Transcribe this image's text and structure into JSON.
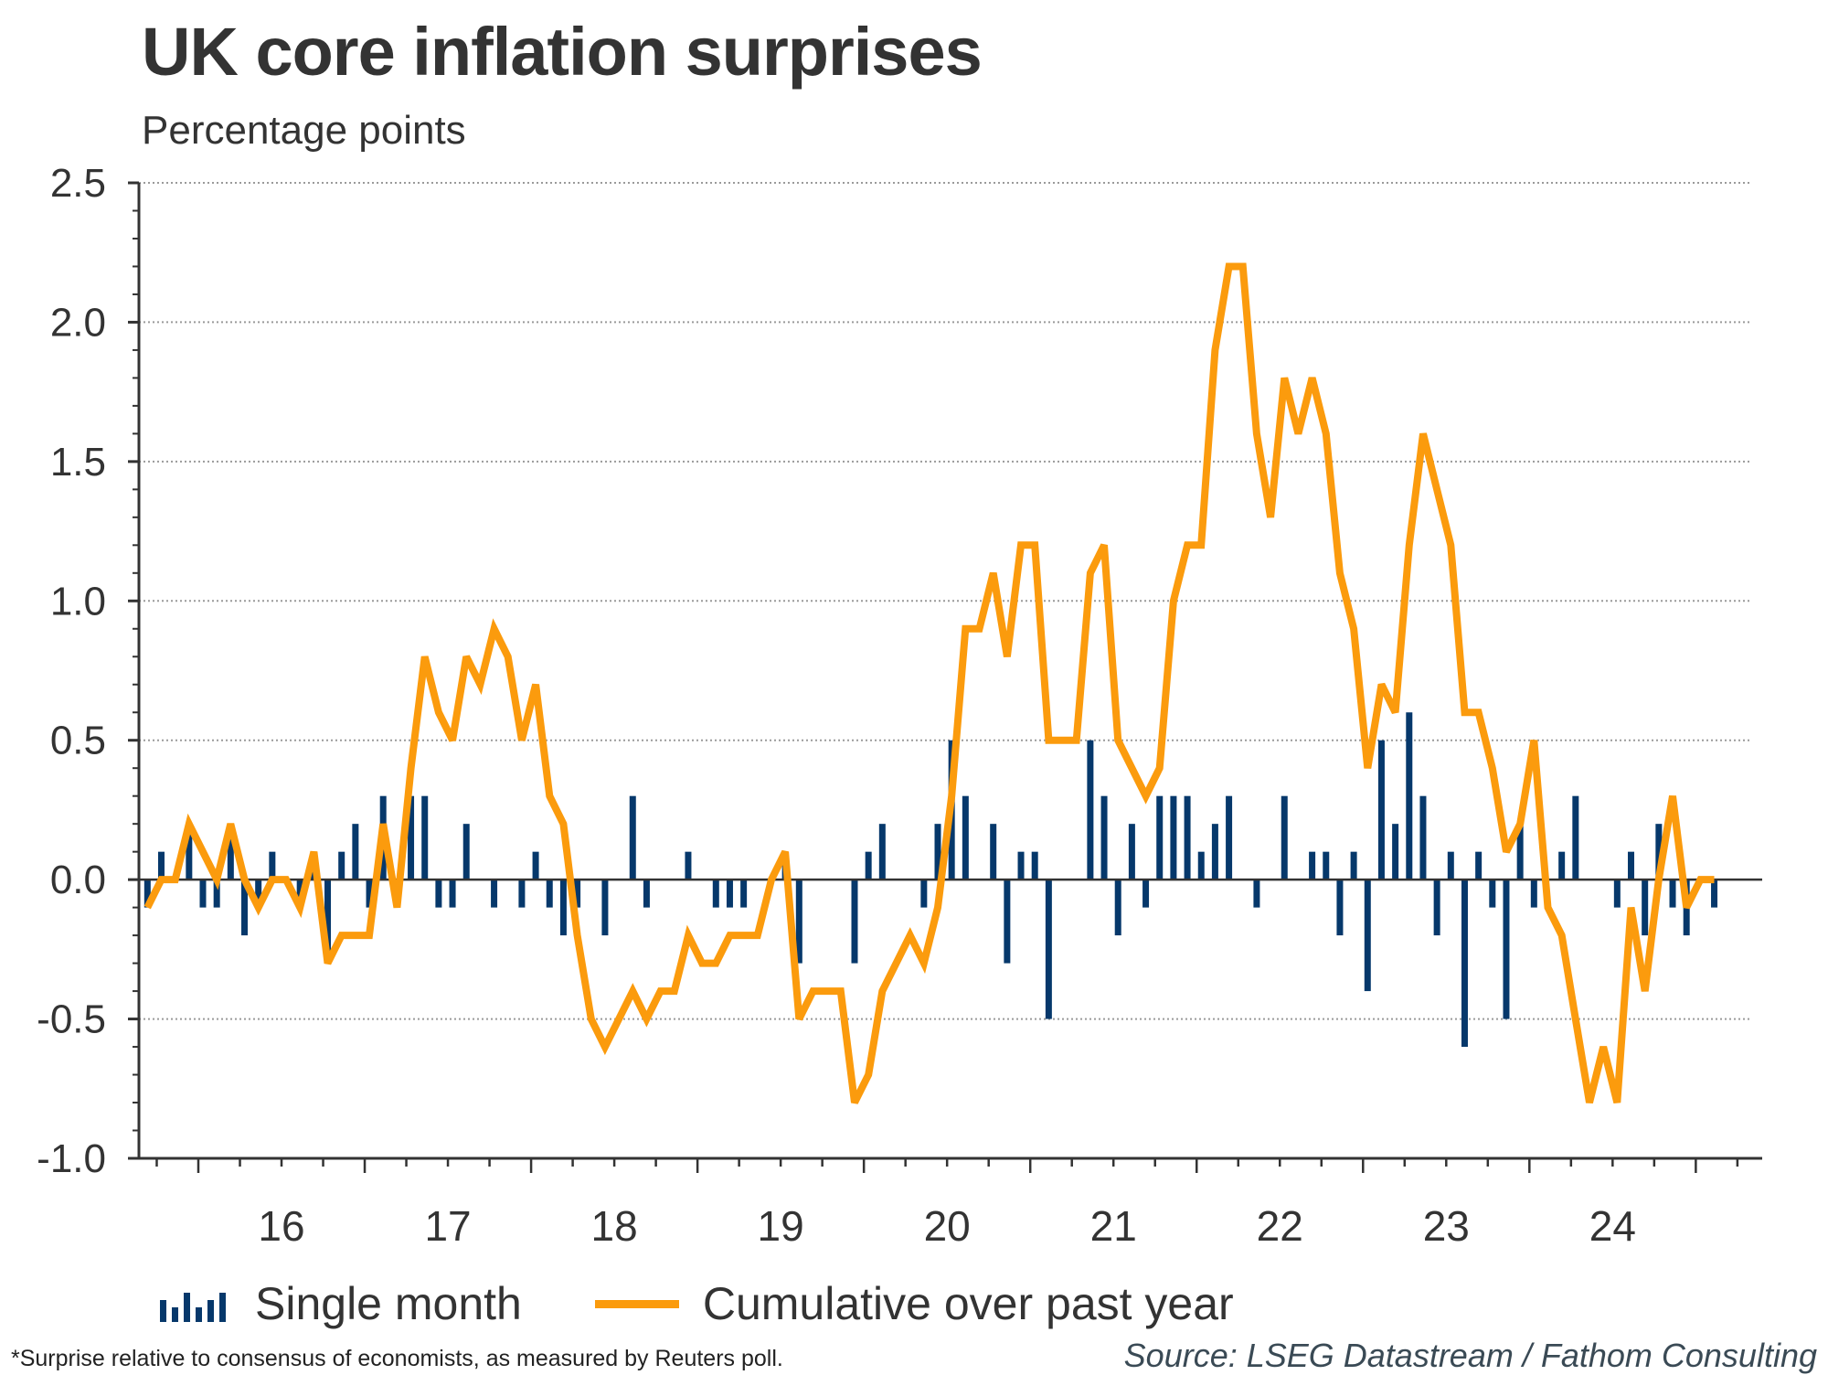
{
  "header": {
    "title": "UK core inflation surprises",
    "subtitle": "Percentage points"
  },
  "legend": {
    "bars_label": "Single month",
    "line_label": "Cumulative over past year"
  },
  "footer": {
    "footnote": "*Surprise relative to consensus of economists, as measured by Reuters poll.",
    "source": "Source: LSEG Datastream / Fathom Consulting"
  },
  "colors": {
    "bars": "#06386b",
    "line": "#fb9b0d",
    "axis": "#333333",
    "grid": "#9a9a9a",
    "text": "#333333"
  },
  "chart_data": {
    "type": "bar+line",
    "title": "UK core inflation surprises",
    "subtitle": "Percentage points",
    "xlabel": "",
    "ylabel": "Percentage points",
    "ylim": [
      -1.0,
      2.5
    ],
    "yticks": [
      -1.0,
      -0.5,
      0.0,
      0.5,
      1.0,
      1.5,
      2.0,
      2.5
    ],
    "ytick_labels": [
      "-1.0",
      "-0.5",
      "0.0",
      "0.5",
      "1.0",
      "1.5",
      "2.0",
      "2.5"
    ],
    "y_minor_step": 0.1,
    "xlim": [
      "2015-08",
      "2025-05"
    ],
    "xtick_labels": [
      "16",
      "17",
      "18",
      "19",
      "20",
      "21",
      "22",
      "23",
      "24"
    ],
    "x_major_ticks": "year start",
    "x_minor_ticks": "quarter start",
    "grid": "horizontal dotted at major y ticks",
    "legend_position": "bottom",
    "x": [
      "2015-09",
      "2015-10",
      "2015-11",
      "2015-12",
      "2016-01",
      "2016-02",
      "2016-03",
      "2016-04",
      "2016-05",
      "2016-06",
      "2016-07",
      "2016-08",
      "2016-09",
      "2016-10",
      "2016-11",
      "2016-12",
      "2017-01",
      "2017-02",
      "2017-03",
      "2017-04",
      "2017-05",
      "2017-06",
      "2017-07",
      "2017-08",
      "2017-09",
      "2017-10",
      "2017-11",
      "2017-12",
      "2018-01",
      "2018-02",
      "2018-03",
      "2018-04",
      "2018-05",
      "2018-06",
      "2018-07",
      "2018-08",
      "2018-09",
      "2018-10",
      "2018-11",
      "2018-12",
      "2019-01",
      "2019-02",
      "2019-03",
      "2019-04",
      "2019-05",
      "2019-06",
      "2019-07",
      "2019-08",
      "2019-09",
      "2019-10",
      "2019-11",
      "2019-12",
      "2020-01",
      "2020-02",
      "2020-03",
      "2020-04",
      "2020-05",
      "2020-06",
      "2020-07",
      "2020-08",
      "2020-09",
      "2020-10",
      "2020-11",
      "2020-12",
      "2021-01",
      "2021-02",
      "2021-03",
      "2021-04",
      "2021-05",
      "2021-06",
      "2021-07",
      "2021-08",
      "2021-09",
      "2021-10",
      "2021-11",
      "2021-12",
      "2022-01",
      "2022-02",
      "2022-03",
      "2022-04",
      "2022-05",
      "2022-06",
      "2022-07",
      "2022-08",
      "2022-09",
      "2022-10",
      "2022-11",
      "2022-12",
      "2023-01",
      "2023-02",
      "2023-03",
      "2023-04",
      "2023-05",
      "2023-06",
      "2023-07",
      "2023-08",
      "2023-09",
      "2023-10",
      "2023-11",
      "2023-12",
      "2024-01",
      "2024-02",
      "2024-03",
      "2024-04",
      "2024-05",
      "2024-06",
      "2024-07",
      "2024-08",
      "2024-09",
      "2024-10",
      "2024-11",
      "2024-12",
      "2025-01",
      "2025-02"
    ],
    "series": [
      {
        "name": "Single month",
        "type": "bar",
        "values": [
          -0.1,
          0.1,
          0.0,
          0.2,
          -0.1,
          -0.1,
          0.2,
          -0.2,
          -0.1,
          0.1,
          0.0,
          -0.1,
          0.1,
          -0.3,
          0.1,
          0.2,
          -0.1,
          0.3,
          0.0,
          0.3,
          0.3,
          -0.1,
          -0.1,
          0.2,
          0.0,
          -0.1,
          0.0,
          -0.1,
          0.1,
          -0.1,
          -0.2,
          -0.1,
          0.0,
          -0.2,
          0.0,
          0.3,
          -0.1,
          0.0,
          0.0,
          0.1,
          0.0,
          -0.1,
          -0.1,
          -0.1,
          0.0,
          0.0,
          0.1,
          -0.3,
          0.0,
          0.0,
          0.0,
          -0.3,
          0.1,
          0.2,
          0.0,
          0.0,
          -0.1,
          0.2,
          0.5,
          0.3,
          0.0,
          0.2,
          -0.3,
          0.1,
          0.1,
          -0.5,
          0.0,
          0.0,
          0.5,
          0.3,
          -0.2,
          0.2,
          -0.1,
          0.3,
          0.3,
          0.3,
          0.1,
          0.2,
          0.3,
          0.0,
          -0.1,
          0.0,
          0.3,
          0.0,
          0.1,
          0.1,
          -0.2,
          0.1,
          -0.4,
          0.5,
          0.2,
          0.6,
          0.3,
          -0.2,
          0.1,
          -0.6,
          0.1,
          -0.1,
          -0.5,
          0.2,
          -0.1,
          0.0,
          0.1,
          0.3,
          0.0,
          0.0,
          -0.1,
          0.1,
          -0.2,
          0.2,
          -0.1,
          -0.2,
          0.0,
          -0.1
        ]
      },
      {
        "name": "Cumulative over past year",
        "type": "line",
        "values": [
          -0.1,
          0.0,
          0.0,
          0.2,
          0.1,
          0.0,
          0.2,
          0.0,
          -0.1,
          0.0,
          0.0,
          -0.1,
          0.1,
          -0.3,
          -0.2,
          -0.2,
          -0.2,
          0.2,
          -0.1,
          0.4,
          0.8,
          0.6,
          0.5,
          0.8,
          0.7,
          0.9,
          0.8,
          0.5,
          0.7,
          0.3,
          0.2,
          -0.2,
          -0.5,
          -0.6,
          -0.5,
          -0.4,
          -0.5,
          -0.4,
          -0.4,
          -0.2,
          -0.3,
          -0.3,
          -0.2,
          -0.2,
          -0.2,
          0.0,
          0.1,
          -0.5,
          -0.4,
          -0.4,
          -0.4,
          -0.8,
          -0.7,
          -0.4,
          -0.3,
          -0.2,
          -0.3,
          -0.1,
          0.3,
          0.9,
          0.9,
          1.1,
          0.8,
          1.2,
          1.2,
          0.5,
          0.5,
          0.5,
          1.1,
          1.2,
          0.5,
          0.4,
          0.3,
          0.4,
          1.0,
          1.2,
          1.2,
          1.9,
          2.2,
          2.2,
          1.6,
          1.3,
          1.8,
          1.6,
          1.8,
          1.6,
          1.1,
          0.9,
          0.4,
          0.7,
          0.6,
          1.2,
          1.6,
          1.4,
          1.2,
          0.6,
          0.6,
          0.4,
          0.1,
          0.2,
          0.5,
          -0.1,
          -0.2,
          -0.5,
          -0.8,
          -0.6,
          -0.8,
          -0.1,
          -0.4,
          0.0,
          0.3,
          -0.1,
          0.0,
          0.0
        ]
      }
    ]
  }
}
